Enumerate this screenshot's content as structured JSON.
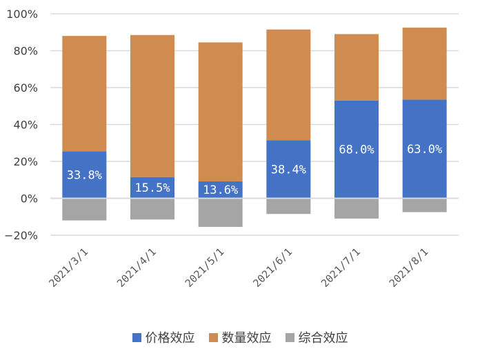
{
  "chart_data": {
    "type": "bar",
    "stacked": true,
    "categories": [
      "2021/3/1",
      "2021/4/1",
      "2021/5/1",
      "2021/6/1",
      "2021/7/1",
      "2021/8/1"
    ],
    "series": [
      {
        "name": "价格效应",
        "color": "#4472C4",
        "values": [
          25.5,
          11.5,
          9.2,
          31.5,
          53.0,
          53.5
        ],
        "labels": [
          "33.8%",
          "15.5%",
          "13.6%",
          "38.4%",
          "68.0%",
          "63.0%"
        ]
      },
      {
        "name": "数量效应",
        "color": "#D08B50",
        "values": [
          62.5,
          77.0,
          75.3,
          60.0,
          36.0,
          39.0
        ]
      },
      {
        "name": "综合效应",
        "color": "#A5A5A5",
        "values": [
          -12.0,
          -11.5,
          -15.5,
          -8.5,
          -11.0,
          -7.5
        ]
      }
    ],
    "y_ticks": [
      "100%",
      "80%",
      "60%",
      "40%",
      "20%",
      "0%",
      "−20%"
    ],
    "ylim": [
      -20,
      100
    ],
    "grid": true,
    "legend_position": "bottom"
  }
}
